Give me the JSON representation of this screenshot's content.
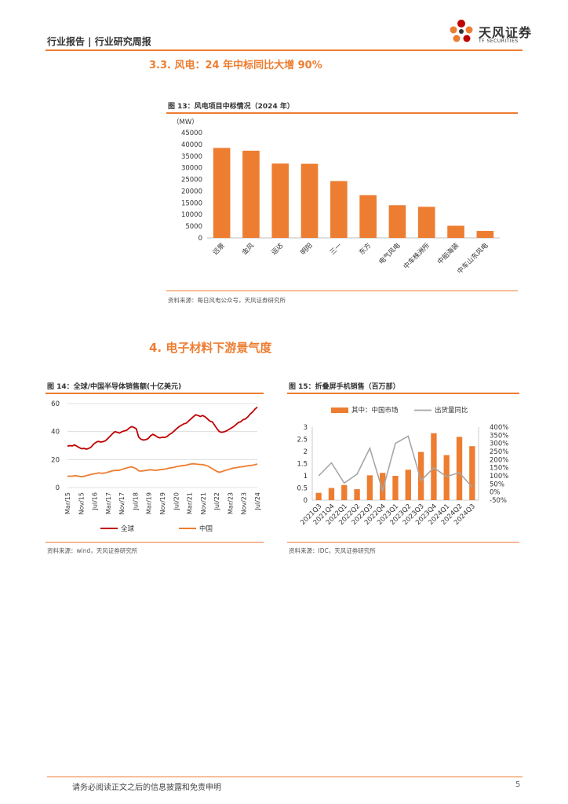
{
  "header": {
    "title": "行业报告 | 行业研究周报",
    "logo_text": "天风证券",
    "logo_sub": "TF SECURITIES"
  },
  "section_33": {
    "title": "3.3. 风电：24 年中标同比大增 90%"
  },
  "fig13": {
    "title": "图 13：风电项目中标情况（2024 年）",
    "source": "资料来源：每日风电公众号，天风证券研究所"
  },
  "section_4": {
    "title": "4. 电子材料下游景气度"
  },
  "fig14": {
    "title": "图 14：全球/中国半导体销售额(十亿美元)",
    "source": "资料来源：wind，天风证券研究所"
  },
  "fig15": {
    "title": "图 15：折叠屏手机销售（百万部）",
    "source": "资料来源：IDC，天风证券研究所"
  },
  "footer": {
    "disclaimer": "请务必阅读正文之后的信息披露和免责申明",
    "page": "5"
  },
  "colors": {
    "accent": "#ED7D31",
    "red": "#C00000",
    "gray": "#A6A6A6"
  },
  "chart_data": [
    {
      "id": "fig13",
      "type": "bar",
      "ylabel": "（MW）",
      "categories": [
        "远景",
        "金风",
        "运达",
        "明阳",
        "三一",
        "东方",
        "电气风电",
        "中车株洲所",
        "中船海装",
        "中车山东风电"
      ],
      "values": [
        38500,
        37300,
        31800,
        31700,
        24300,
        18300,
        14000,
        13300,
        5200,
        3000
      ],
      "ylim": [
        0,
        45000
      ],
      "yticks": [
        "0",
        "5000",
        "10000",
        "15000",
        "20000",
        "25000",
        "30000",
        "35000",
        "40000",
        "45000"
      ]
    },
    {
      "id": "fig14",
      "type": "line",
      "xticks": [
        "Mar/15",
        "Jul/16",
        "Nov/17",
        "Mar/19",
        "Jul/20",
        "Nov/21",
        "Mar/23",
        "Jul/24",
        "Nov/15",
        "Mar/17",
        "Jul/18",
        "Nov/19",
        "Mar/21",
        "Jul/22",
        "Nov/23"
      ],
      "xticks_ordered": [
        "Mar/15",
        "Nov/15",
        "Jul/16",
        "Mar/17",
        "Nov/17",
        "Jul/18",
        "Mar/19",
        "Nov/19",
        "Jul/20",
        "Mar/21",
        "Nov/21",
        "Jul/22",
        "Mar/23",
        "Nov/23",
        "Jul/24"
      ],
      "yticks": [
        "0",
        "20",
        "40",
        "60"
      ],
      "ylim": [
        0,
        60
      ],
      "series": [
        {
          "name": "全球",
          "color": "#C00000",
          "values": [
            29.5,
            30,
            29.8,
            30.5,
            29.5,
            28.5,
            27.8,
            28,
            27.5,
            28,
            29,
            31,
            32.3,
            33,
            32.5,
            32.8,
            33.5,
            35,
            36.8,
            38.5,
            40,
            39.5,
            39,
            40,
            40.5,
            41,
            42.5,
            43.5,
            43,
            42,
            36,
            34.5,
            34,
            34.2,
            35,
            37,
            38,
            37.2,
            36,
            35.5,
            36,
            35.8,
            36.5,
            38,
            39,
            40.5,
            42,
            43.5,
            44.5,
            45.5,
            46,
            47.5,
            49,
            50.5,
            52,
            51.5,
            50.8,
            51.5,
            50.5,
            49,
            47.5,
            47,
            44.5,
            42,
            40,
            39.5,
            39.8,
            40.5,
            41.5,
            42.5,
            43.5,
            45,
            46.5,
            47,
            48.5,
            49,
            50.5,
            52.5,
            54,
            56,
            57.5
          ]
        },
        {
          "name": "中国",
          "color": "#ED7D31",
          "values": [
            8,
            8.2,
            8.1,
            8.5,
            8.3,
            8,
            7.8,
            8,
            8.5,
            9,
            9.5,
            9.8,
            10,
            10.5,
            10.3,
            10.2,
            10.5,
            11,
            11.5,
            12,
            12.3,
            12.2,
            12.5,
            13,
            13.5,
            14,
            14.5,
            14.8,
            14.2,
            13.5,
            12,
            11.8,
            12,
            12.2,
            12.5,
            12.8,
            12.5,
            12.3,
            12.5,
            12.8,
            13,
            13.2,
            13.5,
            14,
            14.2,
            14.5,
            15,
            15.3,
            15.6,
            15.8,
            16,
            16.5,
            16.8,
            17,
            16.8,
            16.6,
            16.5,
            16.4,
            16,
            15.5,
            14.5,
            13.5,
            12.5,
            11.5,
            11,
            11.3,
            12,
            12.5,
            13,
            13.5,
            14,
            14.2,
            14.5,
            14.8,
            15,
            15.3,
            15.6,
            15.8,
            16,
            16.3,
            16.8
          ]
        }
      ]
    },
    {
      "id": "fig15",
      "type": "bar",
      "categories": [
        "2021Q3",
        "2021Q4",
        "2022Q1",
        "2022Q2",
        "2022Q3",
        "2022Q4",
        "2023Q1",
        "2023Q2",
        "2023Q3",
        "2023Q4",
        "2024Q1",
        "2024Q2",
        "2024Q3"
      ],
      "yticks_left": [
        "0",
        "0.5",
        "1",
        "1.5",
        "2",
        "2.5",
        "3"
      ],
      "yticks_right": [
        "-50%",
        "0%",
        "50%",
        "100%",
        "150%",
        "200%",
        "250%",
        "300%",
        "350%",
        "400%"
      ],
      "ylim_left": [
        0,
        3
      ],
      "ylim_right": [
        -50,
        400
      ],
      "series": [
        {
          "name": "其中：中国市场",
          "color": "#ED7D31",
          "axis": "left",
          "values": [
            0.3,
            0.5,
            0.62,
            0.45,
            1.02,
            1.12,
            1.0,
            1.25,
            1.98,
            2.75,
            1.85,
            2.6,
            2.22
          ]
        },
        {
          "name": "出货量同比",
          "color": "#A6A6A6",
          "axis": "right",
          "type": "line",
          "values": [
            100,
            180,
            55,
            110,
            270,
            8,
            300,
            345,
            70,
            150,
            95,
            120,
            30
          ]
        }
      ]
    }
  ]
}
